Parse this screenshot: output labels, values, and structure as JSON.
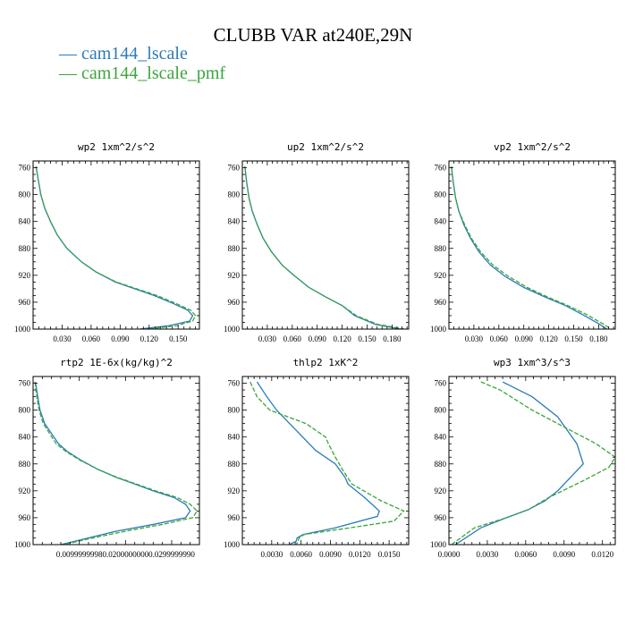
{
  "title": "CLUBB VAR at240E,29N",
  "legend": [
    {
      "label": "— cam144_lscale",
      "color": "#2b7bb9"
    },
    {
      "label": "— cam144_lscale_pmf",
      "color": "#3aa53a"
    }
  ],
  "chart_data": [
    {
      "type": "line",
      "title": "wp2  1xm^2/s^2",
      "xlim": [
        0,
        0.172
      ],
      "ylim": [
        750,
        1000
      ],
      "y_inverted": true,
      "xticks": [
        0.03,
        0.06,
        0.09,
        0.12,
        0.15
      ],
      "xtick_labels": [
        "0.030",
        "0.060",
        "0.090",
        "0.120",
        "0.150"
      ],
      "yticks": [
        760,
        800,
        840,
        880,
        920,
        960,
        1000
      ],
      "ytick_labels": [
        "760",
        "800",
        "840",
        "880",
        "920",
        "960",
        "1000"
      ],
      "series": [
        {
          "name": "cam144_lscale",
          "color": "#2b7bb9",
          "dash": false,
          "x": [
            0.003,
            0.005,
            0.008,
            0.012,
            0.018,
            0.025,
            0.035,
            0.05,
            0.065,
            0.085,
            0.105,
            0.125,
            0.145,
            0.16,
            0.165,
            0.162,
            0.14,
            0.11
          ],
          "y": [
            758,
            775,
            800,
            820,
            840,
            860,
            880,
            900,
            915,
            930,
            940,
            950,
            962,
            972,
            980,
            988,
            995,
            1000
          ]
        },
        {
          "name": "cam144_lscale_pmf",
          "color": "#3aa53a",
          "dash": true,
          "x": [
            0.003,
            0.005,
            0.008,
            0.012,
            0.018,
            0.025,
            0.035,
            0.05,
            0.065,
            0.086,
            0.107,
            0.128,
            0.148,
            0.163,
            0.168,
            0.165,
            0.148,
            0.12
          ],
          "y": [
            758,
            775,
            800,
            820,
            840,
            860,
            880,
            900,
            915,
            930,
            940,
            950,
            962,
            972,
            980,
            988,
            995,
            1000
          ]
        }
      ]
    },
    {
      "type": "line",
      "title": "up2  1xm^2/s^2",
      "xlim": [
        0,
        0.2
      ],
      "ylim": [
        750,
        1000
      ],
      "y_inverted": true,
      "xticks": [
        0.03,
        0.06,
        0.09,
        0.12,
        0.15,
        0.18
      ],
      "xtick_labels": [
        "0.030",
        "0.060",
        "0.090",
        "0.120",
        "0.150",
        "0.180"
      ],
      "yticks": [
        760,
        800,
        840,
        880,
        920,
        960,
        1000
      ],
      "ytick_labels": [
        "760",
        "800",
        "840",
        "880",
        "920",
        "960",
        "1000"
      ],
      "series": [
        {
          "name": "cam144_lscale",
          "color": "#2b7bb9",
          "dash": false,
          "x": [
            0.003,
            0.005,
            0.008,
            0.012,
            0.018,
            0.025,
            0.035,
            0.048,
            0.062,
            0.08,
            0.1,
            0.12,
            0.135,
            0.16,
            0.19
          ],
          "y": [
            758,
            780,
            805,
            825,
            845,
            865,
            885,
            905,
            920,
            938,
            952,
            965,
            980,
            993,
            1000
          ]
        },
        {
          "name": "cam144_lscale_pmf",
          "color": "#3aa53a",
          "dash": true,
          "x": [
            0.003,
            0.005,
            0.008,
            0.012,
            0.018,
            0.025,
            0.035,
            0.048,
            0.062,
            0.08,
            0.1,
            0.12,
            0.137,
            0.163,
            0.195
          ],
          "y": [
            758,
            780,
            805,
            825,
            845,
            865,
            885,
            905,
            920,
            938,
            952,
            965,
            980,
            993,
            1000
          ]
        }
      ]
    },
    {
      "type": "line",
      "title": "vp2  1xm^2/s^2",
      "xlim": [
        0,
        0.2
      ],
      "ylim": [
        750,
        1000
      ],
      "y_inverted": true,
      "xticks": [
        0.03,
        0.06,
        0.09,
        0.12,
        0.15,
        0.18
      ],
      "xtick_labels": [
        "0.030",
        "0.060",
        "0.090",
        "0.120",
        "0.150",
        "0.180"
      ],
      "yticks": [
        760,
        800,
        840,
        880,
        920,
        960,
        1000
      ],
      "ytick_labels": [
        "760",
        "800",
        "840",
        "880",
        "920",
        "960",
        "1000"
      ],
      "series": [
        {
          "name": "cam144_lscale",
          "color": "#2b7bb9",
          "dash": false,
          "x": [
            0.003,
            0.005,
            0.008,
            0.012,
            0.018,
            0.026,
            0.036,
            0.05,
            0.068,
            0.09,
            0.115,
            0.14,
            0.16,
            0.18,
            0.19
          ],
          "y": [
            758,
            780,
            805,
            825,
            845,
            865,
            885,
            905,
            922,
            938,
            952,
            965,
            978,
            992,
            1000
          ]
        },
        {
          "name": "cam144_lscale_pmf",
          "color": "#3aa53a",
          "dash": true,
          "x": [
            0.003,
            0.005,
            0.008,
            0.012,
            0.019,
            0.027,
            0.038,
            0.053,
            0.072,
            0.094,
            0.118,
            0.143,
            0.165,
            0.185,
            0.195
          ],
          "y": [
            758,
            780,
            805,
            825,
            845,
            865,
            885,
            905,
            922,
            938,
            952,
            965,
            978,
            992,
            1000
          ]
        }
      ]
    },
    {
      "type": "line",
      "title": "rtp2  1E-6x(kg/kg)^2",
      "xlim": [
        0,
        0.036
      ],
      "ylim": [
        750,
        1000
      ],
      "y_inverted": true,
      "xticks": [
        0.0099999998,
        0.02,
        0.029999999
      ],
      "xtick_labels": [
        "0.0099999998",
        "0.0200000000",
        "0.0299999990"
      ],
      "yticks": [
        760,
        800,
        840,
        880,
        920,
        960,
        1000
      ],
      "ytick_labels": [
        "760",
        "800",
        "840",
        "880",
        "920",
        "960",
        "1000"
      ],
      "series": [
        {
          "name": "cam144_lscale",
          "color": "#2b7bb9",
          "dash": false,
          "x": [
            0.0005,
            0.001,
            0.0015,
            0.0025,
            0.004,
            0.0055,
            0.0075,
            0.0105,
            0.014,
            0.018,
            0.022,
            0.026,
            0.0305,
            0.033,
            0.034,
            0.033,
            0.026,
            0.018,
            0.012,
            0.006
          ],
          "y": [
            758,
            780,
            800,
            820,
            835,
            850,
            862,
            875,
            888,
            900,
            910,
            920,
            930,
            940,
            950,
            960,
            970,
            980,
            990,
            1000
          ]
        },
        {
          "name": "cam144_lscale_pmf",
          "color": "#3aa53a",
          "dash": true,
          "x": [
            0.0004,
            0.0008,
            0.0013,
            0.0022,
            0.0036,
            0.005,
            0.0072,
            0.0103,
            0.014,
            0.0182,
            0.0224,
            0.0265,
            0.0312,
            0.034,
            0.0355,
            0.0345,
            0.028,
            0.02,
            0.013,
            0.0065
          ],
          "y": [
            758,
            780,
            800,
            820,
            835,
            850,
            862,
            875,
            888,
            900,
            910,
            920,
            930,
            940,
            950,
            960,
            970,
            980,
            990,
            1000
          ]
        }
      ]
    },
    {
      "type": "line",
      "title": "thlp2  1xK^2",
      "xlim": [
        0,
        0.017
      ],
      "ylim": [
        750,
        1000
      ],
      "y_inverted": true,
      "xticks": [
        0.003,
        0.006,
        0.009,
        0.012,
        0.015
      ],
      "xtick_labels": [
        "0.0030",
        "0.0060",
        "0.0090",
        "0.0120",
        "0.0150"
      ],
      "yticks": [
        760,
        800,
        840,
        880,
        920,
        960,
        1000
      ],
      "ytick_labels": [
        "760",
        "800",
        "840",
        "880",
        "920",
        "960",
        "1000"
      ],
      "series": [
        {
          "name": "cam144_lscale",
          "color": "#2b7bb9",
          "dash": false,
          "x": [
            0.0015,
            0.0025,
            0.0035,
            0.0055,
            0.0075,
            0.0095,
            0.0105,
            0.0108,
            0.0125,
            0.014,
            0.0138,
            0.0095,
            0.0062,
            0.0056,
            0.0055,
            0.0052,
            0.0048
          ],
          "y": [
            758,
            780,
            800,
            830,
            860,
            880,
            900,
            910,
            930,
            950,
            958,
            975,
            985,
            990,
            995,
            997,
            1000
          ]
        },
        {
          "name": "cam144_lscale_pmf",
          "color": "#3aa53a",
          "dash": true,
          "x": [
            0.0008,
            0.0015,
            0.0028,
            0.0065,
            0.0085,
            0.0088,
            0.0095,
            0.0103,
            0.0112,
            0.0142,
            0.0165,
            0.0155,
            0.011,
            0.0063,
            0.0058,
            0.0057,
            0.0055
          ],
          "y": [
            758,
            780,
            800,
            820,
            840,
            850,
            870,
            890,
            910,
            935,
            950,
            965,
            975,
            985,
            990,
            995,
            1000
          ]
        }
      ]
    },
    {
      "type": "line",
      "title": "wp3  1xm^3/s^3",
      "xlim": [
        0,
        0.013
      ],
      "ylim": [
        750,
        1000
      ],
      "y_inverted": true,
      "xticks": [
        0.0,
        0.003,
        0.006,
        0.009,
        0.012
      ],
      "xtick_labels": [
        "0.0000",
        "0.0030",
        "0.0060",
        "0.0090",
        "0.0120"
      ],
      "yticks": [
        760,
        800,
        840,
        880,
        920,
        960,
        1000
      ],
      "ytick_labels": [
        "760",
        "800",
        "840",
        "880",
        "920",
        "960",
        "1000"
      ],
      "series": [
        {
          "name": "cam144_lscale",
          "color": "#2b7bb9",
          "dash": false,
          "x": [
            0.0042,
            0.0065,
            0.0085,
            0.01,
            0.0105,
            0.0095,
            0.0085,
            0.0075,
            0.0062,
            0.0045,
            0.0025,
            0.0005
          ],
          "y": [
            758,
            780,
            810,
            850,
            880,
            900,
            920,
            935,
            948,
            960,
            975,
            1000
          ]
        },
        {
          "name": "cam144_lscale_pmf",
          "color": "#3aa53a",
          "dash": true,
          "x": [
            0.0025,
            0.004,
            0.0065,
            0.0095,
            0.0115,
            0.013,
            0.0125,
            0.0105,
            0.0078,
            0.0062,
            0.0045,
            0.002,
            0.0002
          ],
          "y": [
            758,
            770,
            800,
            830,
            850,
            870,
            885,
            905,
            930,
            948,
            960,
            975,
            1000
          ]
        }
      ]
    }
  ]
}
